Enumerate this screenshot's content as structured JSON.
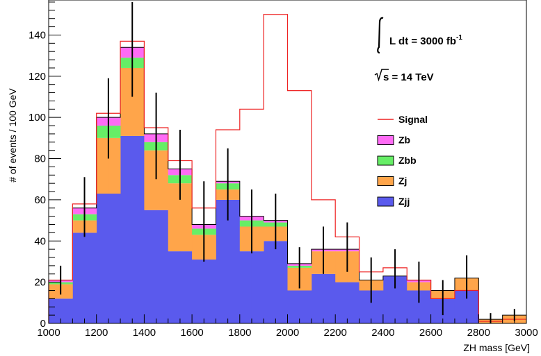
{
  "chart_data": {
    "type": "bar",
    "xlabel": "ZH mass  [GeV]",
    "ylabel": "# of events / 100 GeV",
    "xlim": [
      1000,
      3000
    ],
    "ylim": [
      0,
      157
    ],
    "x_ticks": [
      1000,
      1200,
      1400,
      1600,
      1800,
      2000,
      2200,
      2400,
      2600,
      2800,
      3000
    ],
    "y_ticks": [
      0,
      20,
      40,
      60,
      80,
      100,
      120,
      140
    ],
    "bin_edges": [
      1000,
      1050,
      1100,
      1150,
      1200,
      1250,
      1300,
      1350,
      1400,
      1450,
      1500,
      1550,
      1600,
      1650,
      1700,
      1750,
      1800,
      1850,
      1900,
      1950,
      2000,
      2050,
      2100,
      2150,
      2200,
      2250,
      2300,
      2350,
      2400,
      2450,
      2500,
      2550,
      2600,
      2650,
      2700,
      2750,
      2800,
      2850,
      2900,
      2950,
      3000
    ],
    "stack_series": [
      {
        "name": "Zjj",
        "color": "#5a5aed",
        "values": [
          12,
          12,
          44,
          44,
          63,
          63,
          91,
          91,
          55,
          55,
          35,
          35,
          31,
          31,
          60,
          60,
          35,
          35,
          40,
          40,
          16,
          16,
          24,
          24,
          20,
          20,
          16,
          16,
          23,
          23,
          16,
          16,
          12,
          12,
          16,
          16,
          0,
          0,
          0,
          0
        ]
      },
      {
        "name": "Zj",
        "color": "#ffa54a",
        "values": [
          7,
          7,
          6,
          6,
          27,
          27,
          33,
          33,
          29,
          29,
          33,
          33,
          12,
          12,
          5,
          5,
          12,
          12,
          7,
          7,
          11,
          11,
          11,
          11,
          15,
          15,
          5,
          5,
          0,
          0,
          4,
          4,
          4,
          4,
          6,
          6,
          2,
          2,
          4,
          4
        ]
      },
      {
        "name": "Zbb",
        "color": "#66ee66",
        "values": [
          1,
          1,
          3,
          3,
          6,
          6,
          5,
          5,
          4,
          4,
          4,
          4,
          3,
          3,
          3,
          3,
          3,
          3,
          2,
          2,
          1,
          1,
          0,
          0,
          0,
          0,
          0,
          0,
          0,
          0,
          0,
          0,
          0,
          0,
          0,
          0,
          0,
          0,
          0,
          0
        ]
      },
      {
        "name": "Zb",
        "color": "#ff6bf5",
        "values": [
          1,
          1,
          3,
          3,
          4,
          4,
          5,
          5,
          4,
          4,
          3,
          3,
          2,
          2,
          1,
          1,
          2,
          2,
          1,
          1,
          1,
          1,
          1,
          1,
          1,
          1,
          0,
          0,
          0,
          0,
          1,
          1,
          0,
          0,
          0,
          0,
          0,
          0,
          0,
          0
        ]
      }
    ],
    "signal": {
      "name": "Signal",
      "color": "#ee2222",
      "values": [
        21,
        21,
        58,
        58,
        102,
        102,
        137,
        137,
        95,
        95,
        79,
        79,
        56,
        56,
        94,
        94,
        104,
        104,
        150,
        150,
        113,
        113,
        60,
        60,
        42,
        42,
        25,
        25,
        27,
        27,
        21,
        21,
        12,
        12,
        16,
        16,
        1,
        1,
        2,
        2
      ]
    },
    "error_bars": [
      {
        "x": 1050,
        "low": 14,
        "high": 28
      },
      {
        "x": 1150,
        "low": 42,
        "high": 71
      },
      {
        "x": 1250,
        "low": 80,
        "high": 119
      },
      {
        "x": 1350,
        "low": 110,
        "high": 156
      },
      {
        "x": 1450,
        "low": 70,
        "high": 112
      },
      {
        "x": 1550,
        "low": 60,
        "high": 94
      },
      {
        "x": 1650,
        "low": 30,
        "high": 69
      },
      {
        "x": 1750,
        "low": 50,
        "high": 85
      },
      {
        "x": 1850,
        "low": 34,
        "high": 65
      },
      {
        "x": 1950,
        "low": 36,
        "high": 63
      },
      {
        "x": 2050,
        "low": 17,
        "high": 37
      },
      {
        "x": 2150,
        "low": 24,
        "high": 47
      },
      {
        "x": 2250,
        "low": 25,
        "high": 49
      },
      {
        "x": 2350,
        "low": 10,
        "high": 32
      },
      {
        "x": 2450,
        "low": 17,
        "high": 36
      },
      {
        "x": 2550,
        "low": 10,
        "high": 30
      },
      {
        "x": 2650,
        "low": 4,
        "high": 21
      },
      {
        "x": 2750,
        "low": 12,
        "high": 33
      },
      {
        "x": 2850,
        "low": 0,
        "high": 5
      },
      {
        "x": 2950,
        "low": 1,
        "high": 7
      }
    ],
    "legend": {
      "placement": "right-middle",
      "entries": [
        {
          "name": "Signal",
          "kind": "line",
          "color": "#ee2222"
        },
        {
          "name": "Zb",
          "kind": "box",
          "color": "#ff6bf5"
        },
        {
          "name": "Zbb",
          "kind": "box",
          "color": "#66ee66"
        },
        {
          "name": "Zj",
          "kind": "box",
          "color": "#ffa54a"
        },
        {
          "name": "Zjj",
          "kind": "box",
          "color": "#5a5aed"
        }
      ]
    },
    "annotations": {
      "lumi_prefix": "L dt = 3000 fb",
      "lumi_sup": "-1",
      "energy_prefix": "s = 14 TeV"
    },
    "grid": false
  }
}
